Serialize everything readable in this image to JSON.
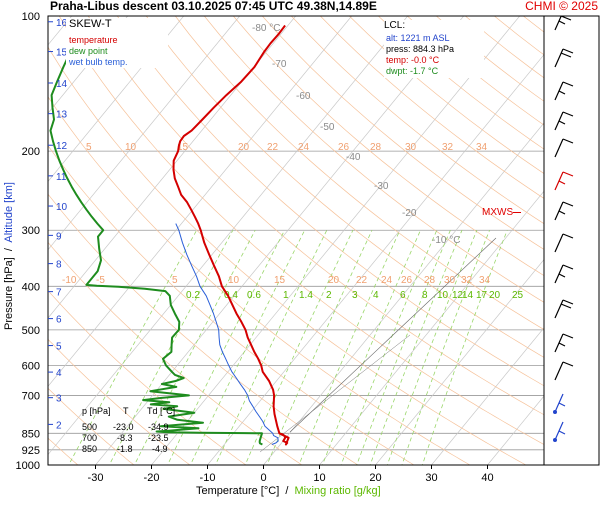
{
  "header": {
    "title": "Praha-Libus   descent   03.10.2025 07:45 UTC   49.38N,14.89E",
    "credit": "CHMI © 2025"
  },
  "legend": {
    "title": "SKEW-T",
    "items": [
      {
        "label": "temperature",
        "color": "#d40000"
      },
      {
        "label": "dew point",
        "color": "#1e8c1e"
      },
      {
        "label": "wet bulb temp.",
        "color": "#2a5fd8"
      }
    ]
  },
  "lcl_box": {
    "title": "LCL:",
    "lines": [
      {
        "text": "alt: 1221 m ASL",
        "color": "#2244cc"
      },
      {
        "text": "press: 884.3 hPa",
        "color": "#000000"
      },
      {
        "text": "temp: -0.0 °C",
        "color": "#d40000"
      },
      {
        "text": "dwpt: -1.7 °C",
        "color": "#1e8c1e"
      }
    ]
  },
  "mxws_label": "MXWS",
  "table": {
    "headers": [
      "p [hPa]",
      "T",
      "Td [°C]"
    ],
    "rows": [
      [
        "500",
        "-23.0",
        "-34.9"
      ],
      [
        "700",
        "-8.3",
        "-23.5"
      ],
      [
        "850",
        "-1.8",
        "-4.9"
      ]
    ]
  },
  "axes": {
    "xlabel_main": "Temperature [°C]",
    "xlabel_sep": "/",
    "xlabel_mix": "Mixing ratio [g/kg]",
    "ylabel_pressure": "Pressure [hPa]",
    "ylabel_sep": "/",
    "ylabel_altitude": "Altitude [km]"
  },
  "chart_data": {
    "type": "line",
    "subtype": "skew-t log-p",
    "xlim": [
      -36,
      46
    ],
    "ylim": [
      1000,
      100
    ],
    "y_scale": "log",
    "x_ticks": [
      -30,
      -20,
      -10,
      0,
      10,
      20,
      30,
      40
    ],
    "pressure_ticks": [
      100,
      200,
      300,
      400,
      500,
      600,
      700,
      850,
      925,
      1000
    ],
    "altitude_ticks": [
      {
        "label": "2",
        "p": 812
      },
      {
        "label": "3",
        "p": 708
      },
      {
        "label": "4",
        "p": 621
      },
      {
        "label": "5",
        "p": 542
      },
      {
        "label": "6",
        "p": 472
      },
      {
        "label": "7",
        "p": 411
      },
      {
        "label": "8",
        "p": 356
      },
      {
        "label": "9",
        "p": 308
      },
      {
        "label": "10",
        "p": 265
      },
      {
        "label": "11",
        "p": 227
      },
      {
        "label": "12",
        "p": 194
      },
      {
        "label": "13",
        "p": 165
      },
      {
        "label": "14",
        "p": 141
      },
      {
        "label": "15",
        "p": 120
      },
      {
        "label": "16",
        "p": 103
      }
    ],
    "isotherm_labels": [
      {
        "text": "-80 °C",
        "x": 1,
        "y": 104
      },
      {
        "text": "-70",
        "x": 2,
        "y": 130
      },
      {
        "text": "-60",
        "x": 6,
        "y": 158
      },
      {
        "text": "-50",
        "x": 12,
        "y": 180
      },
      {
        "text": "-40",
        "x": 16,
        "y": 210
      },
      {
        "text": "-30",
        "x": 22,
        "y": 238
      },
      {
        "text": "-20",
        "x": 28,
        "y": 270
      },
      {
        "text": "-10 °C",
        "x": 34,
        "y": 320
      }
    ],
    "dry_adiabat_labels_upper": [
      "5",
      "10",
      "15",
      "20",
      "22",
      "24",
      "26",
      "28",
      "30",
      "32",
      "34"
    ],
    "dry_adiabat_labels_lower": [
      "-10",
      "-5",
      "5",
      "10",
      "15",
      "20",
      "22",
      "24",
      "26",
      "28",
      "30",
      "32",
      "34"
    ],
    "mixing_ratio_labels": [
      "0.2",
      "0.4",
      "0.6",
      "1",
      "1.4",
      "2",
      "3",
      "4",
      "6",
      "8",
      "10",
      "12",
      "14",
      "17",
      "20",
      "25"
    ],
    "series": [
      {
        "name": "temperature",
        "color": "#d40000",
        "points": [
          [
            850,
            -1.8
          ],
          [
            855,
            -1.0
          ],
          [
            860,
            -0.6
          ],
          [
            870,
            -0.1
          ],
          [
            884,
            0.0
          ],
          [
            893,
            1.0
          ],
          [
            900,
            1.0
          ],
          [
            870,
            0.5
          ],
          [
            850,
            -1.8
          ],
          [
            820,
            -3.2
          ],
          [
            800,
            -4.1
          ],
          [
            770,
            -5.5
          ],
          [
            740,
            -6.8
          ],
          [
            700,
            -8.3
          ],
          [
            680,
            -9.3
          ],
          [
            650,
            -11.3
          ],
          [
            620,
            -13.8
          ],
          [
            600,
            -15.0
          ],
          [
            580,
            -16.5
          ],
          [
            560,
            -18.2
          ],
          [
            540,
            -19.8
          ],
          [
            520,
            -21.5
          ],
          [
            500,
            -23.0
          ],
          [
            480,
            -24.9
          ],
          [
            460,
            -27.0
          ],
          [
            440,
            -29.0
          ],
          [
            420,
            -31.1
          ],
          [
            400,
            -33.6
          ],
          [
            380,
            -35.6
          ],
          [
            360,
            -38.0
          ],
          [
            340,
            -40.5
          ],
          [
            320,
            -43.1
          ],
          [
            300,
            -45.6
          ],
          [
            290,
            -47.0
          ],
          [
            280,
            -48.6
          ],
          [
            270,
            -50.3
          ],
          [
            260,
            -52.1
          ],
          [
            250,
            -54.3
          ],
          [
            240,
            -56.0
          ],
          [
            230,
            -57.8
          ],
          [
            220,
            -59.3
          ],
          [
            210,
            -60.6
          ],
          [
            200,
            -61.2
          ],
          [
            195,
            -61.8
          ],
          [
            190,
            -62.3
          ],
          [
            185,
            -62.4
          ],
          [
            180,
            -61.8
          ],
          [
            170,
            -61.5
          ],
          [
            160,
            -61.2
          ],
          [
            150,
            -60.8
          ],
          [
            140,
            -60.1
          ],
          [
            130,
            -59.9
          ],
          [
            120,
            -60.4
          ],
          [
            115,
            -60.5
          ],
          [
            110,
            -60.4
          ],
          [
            105,
            -60.5
          ]
        ]
      },
      {
        "name": "dew point",
        "color": "#1e8c1e",
        "points": [
          [
            900,
            -3.2
          ],
          [
            895,
            -3.8
          ],
          [
            890,
            -4.0
          ],
          [
            884,
            -4.2
          ],
          [
            870,
            -4.5
          ],
          [
            860,
            -4.7
          ],
          [
            850,
            -4.9
          ],
          [
            849,
            -8
          ],
          [
            848,
            -16
          ],
          [
            845,
            -22
          ],
          [
            842,
            -24
          ],
          [
            839,
            -22
          ],
          [
            835,
            -20
          ],
          [
            828,
            -17
          ],
          [
            820,
            -24
          ],
          [
            805,
            -17
          ],
          [
            793,
            -22
          ],
          [
            780,
            -24
          ],
          [
            765,
            -20
          ],
          [
            750,
            -26
          ],
          [
            740,
            -24
          ],
          [
            733,
            -29
          ],
          [
            725,
            -26
          ],
          [
            717,
            -31
          ],
          [
            709,
            -28
          ],
          [
            700,
            -23.5
          ],
          [
            685,
            -31
          ],
          [
            670,
            -27
          ],
          [
            660,
            -30
          ],
          [
            650,
            -28
          ],
          [
            640,
            -27
          ],
          [
            630,
            -29
          ],
          [
            620,
            -30
          ],
          [
            600,
            -32
          ],
          [
            580,
            -33.5
          ],
          [
            560,
            -33
          ],
          [
            540,
            -34
          ],
          [
            520,
            -35
          ],
          [
            500,
            -34.9
          ],
          [
            480,
            -36
          ],
          [
            460,
            -38
          ],
          [
            440,
            -40
          ],
          [
            420,
            -41.5
          ],
          [
            410,
            -43
          ],
          [
            405,
            -47
          ],
          [
            401,
            -52
          ],
          [
            399,
            -56
          ],
          [
            397,
            -58
          ],
          [
            390,
            -58
          ],
          [
            370,
            -58
          ],
          [
            350,
            -59
          ],
          [
            330,
            -61
          ],
          [
            310,
            -63
          ],
          [
            300,
            -63
          ],
          [
            290,
            -65
          ],
          [
            280,
            -67
          ],
          [
            270,
            -69
          ],
          [
            260,
            -71
          ],
          [
            250,
            -73
          ],
          [
            240,
            -75
          ],
          [
            230,
            -77
          ],
          [
            220,
            -79
          ],
          [
            210,
            -81
          ],
          [
            200,
            -83
          ],
          [
            190,
            -85
          ],
          [
            180,
            -87
          ],
          [
            170,
            -88
          ],
          [
            160,
            -90
          ],
          [
            150,
            -92
          ],
          [
            140,
            -93
          ],
          [
            130,
            -94
          ],
          [
            120,
            -95
          ],
          [
            110,
            -96
          ],
          [
            105,
            -97
          ]
        ]
      },
      {
        "name": "wet bulb temp.",
        "color": "#2a5fd8",
        "points": [
          [
            900,
            -1.5
          ],
          [
            893,
            -1.0
          ],
          [
            884,
            -0.9
          ],
          [
            870,
            -1.4
          ],
          [
            860,
            -2.5
          ],
          [
            850,
            -3.0
          ],
          [
            820,
            -5.4
          ],
          [
            800,
            -6.5
          ],
          [
            780,
            -7.8
          ],
          [
            760,
            -9.2
          ],
          [
            740,
            -10.5
          ],
          [
            720,
            -11.9
          ],
          [
            700,
            -13.0
          ],
          [
            680,
            -14.4
          ],
          [
            660,
            -16.0
          ],
          [
            640,
            -17.6
          ],
          [
            620,
            -19.3
          ],
          [
            600,
            -20.8
          ],
          [
            580,
            -22.3
          ],
          [
            560,
            -23.9
          ],
          [
            540,
            -25.4
          ],
          [
            520,
            -26.6
          ],
          [
            500,
            -27.8
          ],
          [
            480,
            -29.4
          ],
          [
            460,
            -31.1
          ],
          [
            440,
            -33.0
          ],
          [
            420,
            -35.0
          ],
          [
            400,
            -37.5
          ],
          [
            380,
            -39.6
          ],
          [
            360,
            -42.0
          ],
          [
            340,
            -44.5
          ],
          [
            320,
            -47.0
          ],
          [
            300,
            -49.5
          ],
          [
            290,
            -51.0
          ]
        ]
      }
    ]
  }
}
